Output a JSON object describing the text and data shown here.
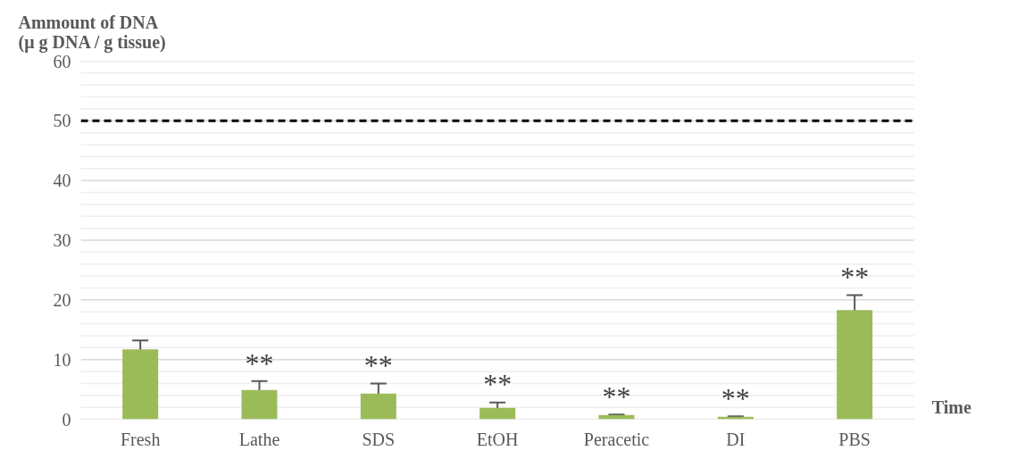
{
  "chart_data": {
    "type": "bar",
    "ylabel": "Ammount of DNA\n(μ g DNA / g tissue)",
    "xlabel": "Time",
    "categories": [
      "Fresh",
      "Lathe",
      "SDS",
      "EtOH",
      "Peracetic",
      "DI",
      "PBS"
    ],
    "values": [
      11.7,
      4.9,
      4.3,
      1.9,
      0.7,
      0.4,
      18.3
    ],
    "errors": [
      1.5,
      1.5,
      1.7,
      0.9,
      0.1,
      0.1,
      2.5
    ],
    "color": "#9bbb59",
    "ylim": [
      0,
      60
    ],
    "yticks": [
      0,
      {
        "value": 2,
        "label": null
      },
      {
        "value": 4,
        "label": null
      },
      {
        "value": 6,
        "label": null
      },
      {
        "value": 8,
        "label": null
      },
      10,
      {
        "value": 12,
        "label": null
      },
      {
        "value": 14,
        "label": null
      },
      {
        "value": 16,
        "label": null
      },
      {
        "value": 18,
        "label": null
      },
      20,
      {
        "value": 22,
        "label": null
      },
      {
        "value": 24,
        "label": null
      },
      {
        "value": 26,
        "label": null
      },
      {
        "value": 28,
        "label": null
      },
      30,
      {
        "value": 32,
        "label": null
      },
      {
        "value": 34,
        "label": null
      },
      {
        "value": 36,
        "label": null
      },
      {
        "value": 38,
        "label": null
      },
      40,
      {
        "value": 42,
        "label": null
      },
      {
        "value": 44,
        "label": null
      },
      {
        "value": 46,
        "label": null
      },
      {
        "value": 48,
        "label": null
      },
      50,
      {
        "value": 52,
        "label": null
      },
      {
        "value": 54,
        "label": null
      },
      {
        "value": 56,
        "label": null
      },
      {
        "value": 58,
        "label": null
      },
      60
    ],
    "grid": "y",
    "ref_lines": [
      {
        "axis": "y",
        "value": 50,
        "color": "#000000",
        "line_style": "dashed"
      }
    ],
    "annotations": [
      {
        "text": "**",
        "x": "Lathe",
        "y": 6.4
      },
      {
        "text": "**",
        "x": "SDS",
        "y": 6.1
      },
      {
        "text": "**",
        "x": "EtOH",
        "y": 2.9
      },
      {
        "text": "**",
        "x": "Peracetic",
        "y": 0.8
      },
      {
        "text": "**",
        "x": "DI",
        "y": 0.5
      },
      {
        "text": "**",
        "x": "PBS",
        "y": 20.9
      }
    ]
  }
}
